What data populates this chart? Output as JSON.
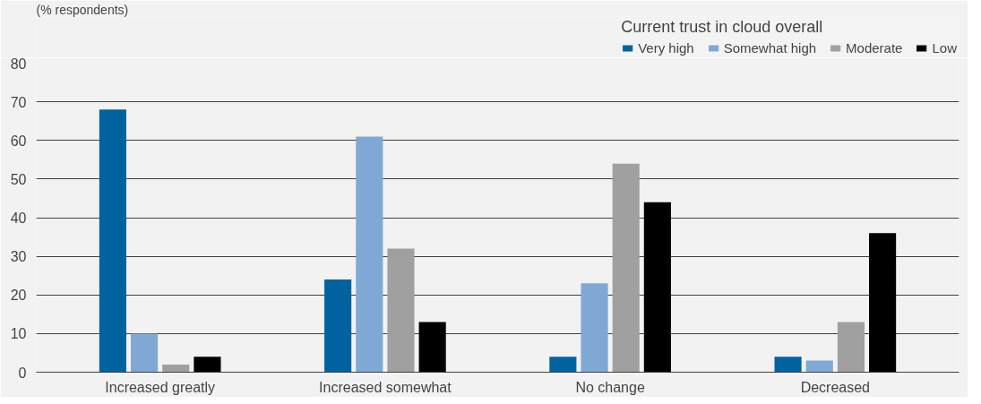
{
  "chart_data": {
    "type": "bar",
    "ylabel": "(% respondents)",
    "legend_title": "Current trust in cloud overall",
    "categories": [
      "Increased greatly",
      "Increased somewhat",
      "No change",
      "Decreased"
    ],
    "series": [
      {
        "name": "Very high",
        "color": "#0063a0",
        "values": [
          68,
          24,
          4,
          4
        ]
      },
      {
        "name": "Somewhat high",
        "color": "#7fa9d4",
        "values": [
          10,
          61,
          23,
          3
        ]
      },
      {
        "name": "Moderate",
        "color": "#a0a0a0",
        "values": [
          2,
          32,
          54,
          13
        ]
      },
      {
        "name": "Low",
        "color": "#000000",
        "values": [
          4,
          13,
          44,
          36
        ]
      }
    ],
    "ylim": [
      0,
      80
    ],
    "yticks": [
      0,
      10,
      20,
      30,
      40,
      50,
      60,
      70,
      80
    ],
    "grid": "y",
    "legend": "top right"
  }
}
